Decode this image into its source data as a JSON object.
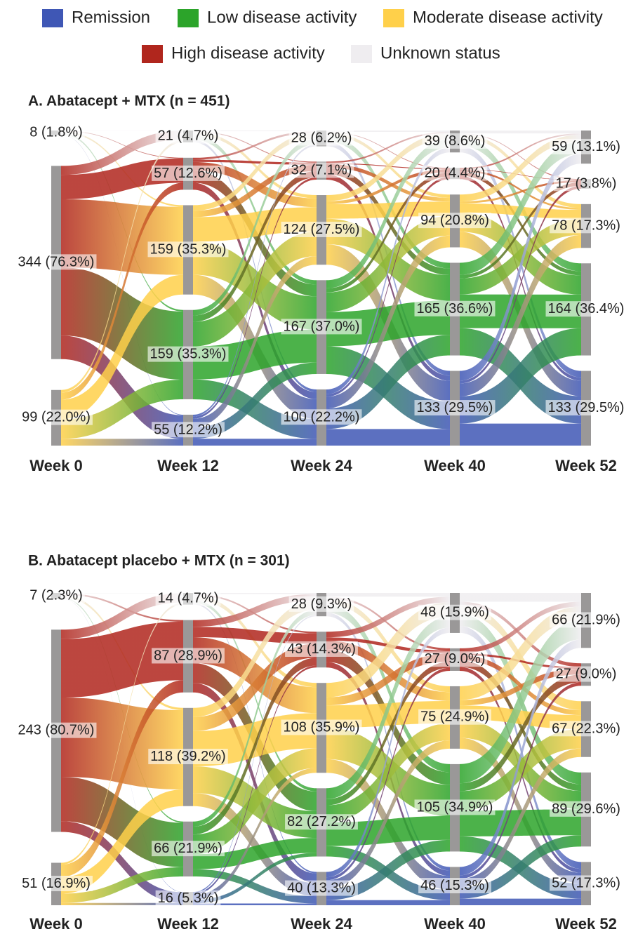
{
  "chart_data": [
    {
      "type": "sankey",
      "title": "A. Abatacept + MTX (n = 451)",
      "categories": [
        "Week 0",
        "Week 12",
        "Week 24",
        "Week 40",
        "Week 52"
      ],
      "series": [
        {
          "name": "Unknown status",
          "color": "#efedf0",
          "values": [
            8,
            21,
            28,
            39,
            59
          ],
          "value_labels": [
            "8 (1.8%)",
            "21 (4.7%)",
            "28 (6.2%)",
            "39 (8.6%)",
            "59 (13.1%)"
          ]
        },
        {
          "name": "High disease activity",
          "color": "#b0261d",
          "values": [
            344,
            57,
            32,
            20,
            17
          ],
          "value_labels": [
            "344 (76.3%)",
            "57 (12.6%)",
            "32 (7.1%)",
            "20 (4.4%)",
            "17 (3.8%)"
          ]
        },
        {
          "name": "Moderate disease activity",
          "color": "#ffd04a",
          "values": [
            99,
            159,
            124,
            94,
            78
          ],
          "value_labels": [
            "99 (22.0%)",
            "159 (35.3%)",
            "124 (27.5%)",
            "94 (20.8%)",
            "78 (17.3%)"
          ]
        },
        {
          "name": "Low disease activity",
          "color": "#2ca42a",
          "values": [
            null,
            159,
            167,
            165,
            164
          ],
          "value_labels": [
            null,
            "159 (35.3%)",
            "167 (37.0%)",
            "165 (36.6%)",
            "164 (36.4%)"
          ]
        },
        {
          "name": "Remission",
          "color": "#3f57b5",
          "values": [
            null,
            55,
            100,
            133,
            133
          ],
          "value_labels": [
            null,
            "55 (12.2%)",
            "100 (22.2%)",
            "133 (29.5%)",
            "133 (29.5%)"
          ]
        }
      ]
    },
    {
      "type": "sankey",
      "title": "B. Abatacept placebo + MTX (n = 301)",
      "categories": [
        "Week 0",
        "Week 12",
        "Week 24",
        "Week 40",
        "Week 52"
      ],
      "series": [
        {
          "name": "Unknown status",
          "color": "#efedf0",
          "values": [
            7,
            14,
            28,
            48,
            66
          ],
          "value_labels": [
            "7 (2.3%)",
            "14 (4.7%)",
            "28 (9.3%)",
            "48 (15.9%)",
            "66 (21.9%)"
          ]
        },
        {
          "name": "High disease activity",
          "color": "#b0261d",
          "values": [
            243,
            87,
            43,
            27,
            27
          ],
          "value_labels": [
            "243 (80.7%)",
            "87 (28.9%)",
            "43 (14.3%)",
            "27 (9.0%)",
            "27 (9.0%)"
          ]
        },
        {
          "name": "Moderate disease activity",
          "color": "#ffd04a",
          "values": [
            51,
            118,
            108,
            75,
            67
          ],
          "value_labels": [
            "51 (16.9%)",
            "118 (39.2%)",
            "108 (35.9%)",
            "75 (24.9%)",
            "67 (22.3%)"
          ]
        },
        {
          "name": "Low disease activity",
          "color": "#2ca42a",
          "values": [
            null,
            66,
            82,
            105,
            89
          ],
          "value_labels": [
            null,
            "66 (21.9%)",
            "82 (27.2%)",
            "105 (34.9%)",
            "89 (29.6%)"
          ]
        },
        {
          "name": "Remission",
          "color": "#3f57b5",
          "values": [
            null,
            16,
            40,
            46,
            52
          ],
          "value_labels": [
            null,
            "16 (5.3%)",
            "40 (13.3%)",
            "46 (15.3%)",
            "52 (17.3%)"
          ]
        }
      ]
    }
  ]
}
